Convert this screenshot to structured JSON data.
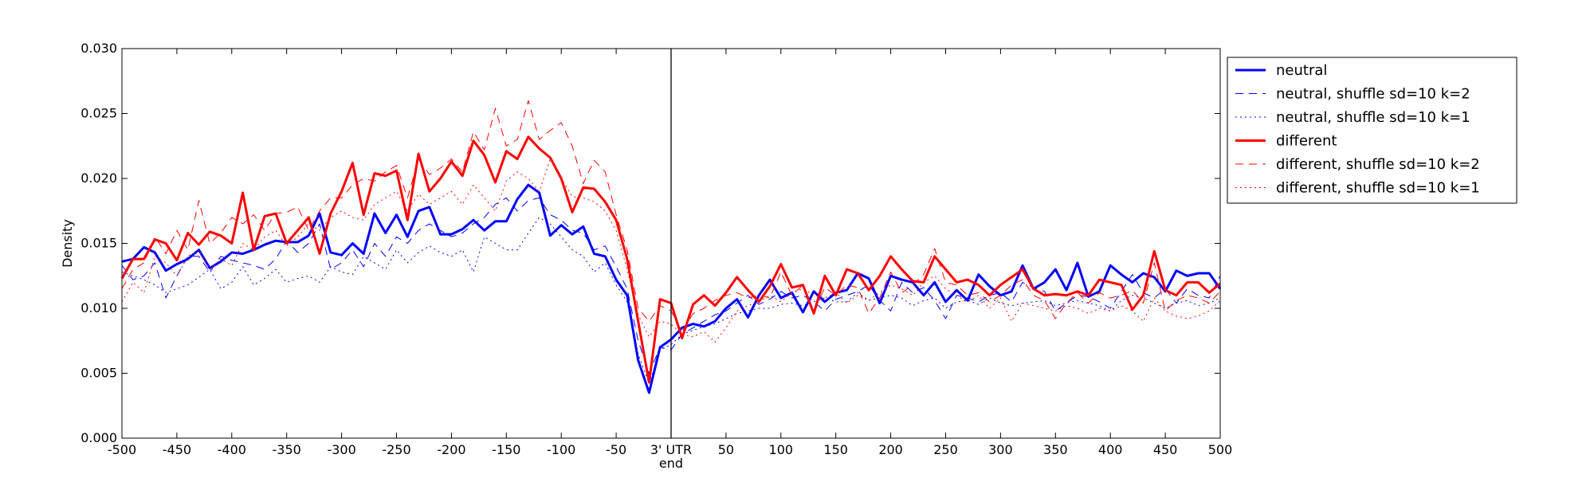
{
  "chart_data": {
    "type": "line",
    "title": "",
    "xlabel": "",
    "ylabel": "Density",
    "xlim": [
      -500,
      500
    ],
    "ylim": [
      0,
      0.03
    ],
    "x_ticks": [
      {
        "value": -500,
        "label": "-500"
      },
      {
        "value": -450,
        "label": "-450"
      },
      {
        "value": -400,
        "label": "-400"
      },
      {
        "value": -350,
        "label": "-350"
      },
      {
        "value": -300,
        "label": "-300"
      },
      {
        "value": -250,
        "label": "-250"
      },
      {
        "value": -200,
        "label": "-200"
      },
      {
        "value": -150,
        "label": "-150"
      },
      {
        "value": -100,
        "label": "-100"
      },
      {
        "value": -50,
        "label": "-50"
      },
      {
        "value": 0,
        "label": "3' UTR"
      },
      {
        "value": 50,
        "label": "50"
      },
      {
        "value": 100,
        "label": "100"
      },
      {
        "value": 150,
        "label": "150"
      },
      {
        "value": 200,
        "label": "200"
      },
      {
        "value": 250,
        "label": "250"
      },
      {
        "value": 300,
        "label": "300"
      },
      {
        "value": 350,
        "label": "350"
      },
      {
        "value": 400,
        "label": "400"
      },
      {
        "value": 450,
        "label": "450"
      },
      {
        "value": 500,
        "label": "500"
      }
    ],
    "x_tick_sublabel": "end",
    "y_ticks": [
      {
        "value": 0,
        "label": "0.000"
      },
      {
        "value": 0.005,
        "label": "0.005"
      },
      {
        "value": 0.01,
        "label": "0.010"
      },
      {
        "value": 0.015,
        "label": "0.015"
      },
      {
        "value": 0.02,
        "label": "0.020"
      },
      {
        "value": 0.025,
        "label": "0.025"
      },
      {
        "value": 0.03,
        "label": "0.030"
      }
    ],
    "vline_x": 0,
    "grid": false,
    "legend_position": "outside-right-top",
    "x": [
      -500,
      -490,
      -480,
      -470,
      -460,
      -450,
      -440,
      -430,
      -420,
      -410,
      -400,
      -390,
      -380,
      -370,
      -360,
      -350,
      -340,
      -330,
      -320,
      -310,
      -300,
      -290,
      -280,
      -270,
      -260,
      -250,
      -240,
      -230,
      -220,
      -210,
      -200,
      -190,
      -180,
      -170,
      -160,
      -150,
      -140,
      -130,
      -120,
      -110,
      -100,
      -90,
      -80,
      -70,
      -60,
      -50,
      -40,
      -30,
      -20,
      -10,
      0,
      10,
      20,
      30,
      40,
      50,
      60,
      70,
      80,
      90,
      100,
      110,
      120,
      130,
      140,
      150,
      160,
      170,
      180,
      190,
      200,
      210,
      220,
      230,
      240,
      250,
      260,
      270,
      280,
      290,
      300,
      310,
      320,
      330,
      340,
      350,
      360,
      370,
      380,
      390,
      400,
      410,
      420,
      430,
      440,
      450,
      460,
      470,
      480,
      490,
      500
    ],
    "series": [
      {
        "name": "neutral",
        "color": "#0000ff",
        "style": "solid",
        "width": 3,
        "values": [
          0.0136,
          0.0138,
          0.0147,
          0.0143,
          0.0129,
          0.0134,
          0.0138,
          0.0145,
          0.0131,
          0.0136,
          0.0143,
          0.0142,
          0.0145,
          0.0149,
          0.0152,
          0.0151,
          0.0151,
          0.0156,
          0.0173,
          0.0143,
          0.0141,
          0.015,
          0.0142,
          0.0173,
          0.0158,
          0.0172,
          0.0155,
          0.0175,
          0.0178,
          0.0157,
          0.0157,
          0.0161,
          0.0168,
          0.016,
          0.0167,
          0.0167,
          0.0184,
          0.0195,
          0.0189,
          0.0156,
          0.0164,
          0.0157,
          0.0163,
          0.0142,
          0.014,
          0.0122,
          0.011,
          0.006,
          0.0035,
          0.007,
          0.0076,
          0.0085,
          0.0088,
          0.0086,
          0.009,
          0.01,
          0.0107,
          0.0093,
          0.011,
          0.0122,
          0.0108,
          0.0112,
          0.0097,
          0.0113,
          0.0105,
          0.0112,
          0.0114,
          0.0127,
          0.0123,
          0.0104,
          0.0125,
          0.0122,
          0.012,
          0.011,
          0.012,
          0.0105,
          0.0114,
          0.0106,
          0.0126,
          0.0117,
          0.011,
          0.0113,
          0.0133,
          0.0115,
          0.012,
          0.013,
          0.0114,
          0.0135,
          0.0109,
          0.0113,
          0.0133,
          0.0126,
          0.012,
          0.0127,
          0.0124,
          0.0113,
          0.0129,
          0.0125,
          0.0127,
          0.0127,
          0.0115
        ]
      },
      {
        "name": "neutral, shuffle sd=10 k=2",
        "color": "#0000ff",
        "style": "dashed",
        "width": 1,
        "values": [
          0.0133,
          0.0122,
          0.0125,
          0.0135,
          0.0108,
          0.0125,
          0.014,
          0.014,
          0.0128,
          0.014,
          0.0137,
          0.0135,
          0.0133,
          0.013,
          0.0138,
          0.0152,
          0.0143,
          0.015,
          0.0165,
          0.013,
          0.0135,
          0.0145,
          0.0132,
          0.015,
          0.014,
          0.0155,
          0.015,
          0.016,
          0.0165,
          0.016,
          0.0155,
          0.0158,
          0.0165,
          0.017,
          0.018,
          0.0185,
          0.0175,
          0.0183,
          0.0185,
          0.0172,
          0.0168,
          0.016,
          0.0158,
          0.0145,
          0.0148,
          0.0132,
          0.0115,
          0.0075,
          0.005,
          0.007,
          0.0068,
          0.008,
          0.0085,
          0.009,
          0.0095,
          0.0098,
          0.0104,
          0.011,
          0.0103,
          0.0107,
          0.0113,
          0.0108,
          0.011,
          0.0105,
          0.0098,
          0.0107,
          0.011,
          0.0113,
          0.0118,
          0.0106,
          0.0098,
          0.012,
          0.0112,
          0.0116,
          0.0106,
          0.0092,
          0.011,
          0.0108,
          0.0105,
          0.011,
          0.0112,
          0.0105,
          0.012,
          0.0116,
          0.0113,
          0.0098,
          0.0104,
          0.011,
          0.0109,
          0.0105,
          0.01,
          0.0113,
          0.0126,
          0.0112,
          0.0108,
          0.0115,
          0.0104,
          0.0115,
          0.011,
          0.0108,
          0.0125
        ]
      },
      {
        "name": "neutral, shuffle sd=10 k=1",
        "color": "#0000ff",
        "style": "dotted",
        "width": 1,
        "values": [
          0.0128,
          0.0125,
          0.0122,
          0.0118,
          0.0112,
          0.0115,
          0.0118,
          0.0124,
          0.013,
          0.0115,
          0.012,
          0.0132,
          0.0118,
          0.0123,
          0.013,
          0.012,
          0.0123,
          0.0125,
          0.012,
          0.0132,
          0.0128,
          0.0126,
          0.014,
          0.0135,
          0.013,
          0.0145,
          0.0135,
          0.0143,
          0.0148,
          0.0143,
          0.014,
          0.0145,
          0.0128,
          0.0155,
          0.015,
          0.0145,
          0.0145,
          0.0158,
          0.017,
          0.0165,
          0.0155,
          0.0145,
          0.014,
          0.0128,
          0.0135,
          0.0118,
          0.0105,
          0.0065,
          0.0042,
          0.0068,
          0.0072,
          0.008,
          0.0083,
          0.0086,
          0.0088,
          0.0092,
          0.0096,
          0.0098,
          0.01,
          0.01,
          0.0103,
          0.0104,
          0.0102,
          0.0105,
          0.0108,
          0.0105,
          0.0105,
          0.0112,
          0.0106,
          0.0108,
          0.011,
          0.0108,
          0.0102,
          0.0106,
          0.0108,
          0.01,
          0.0105,
          0.0106,
          0.0103,
          0.0108,
          0.0104,
          0.0102,
          0.0104,
          0.0105,
          0.0106,
          0.0102,
          0.0104,
          0.0106,
          0.0104,
          0.0102,
          0.0098,
          0.0106,
          0.011,
          0.0108,
          0.0104,
          0.01,
          0.0104,
          0.0106,
          0.0102,
          0.0104,
          0.0108
        ]
      },
      {
        "name": "different",
        "color": "#ff0000",
        "style": "solid",
        "width": 3,
        "values": [
          0.0123,
          0.0138,
          0.0138,
          0.0153,
          0.015,
          0.0137,
          0.0158,
          0.0149,
          0.0159,
          0.0156,
          0.015,
          0.0189,
          0.0145,
          0.0171,
          0.0173,
          0.015,
          0.016,
          0.017,
          0.0142,
          0.0173,
          0.019,
          0.0212,
          0.0172,
          0.0204,
          0.0202,
          0.0206,
          0.0168,
          0.0219,
          0.019,
          0.02,
          0.0213,
          0.0202,
          0.0229,
          0.0218,
          0.0197,
          0.0221,
          0.0215,
          0.0232,
          0.0223,
          0.0216,
          0.02,
          0.0174,
          0.0193,
          0.0192,
          0.0182,
          0.0168,
          0.0138,
          0.009,
          0.0043,
          0.0107,
          0.0104,
          0.0077,
          0.0103,
          0.011,
          0.0102,
          0.0112,
          0.0124,
          0.0114,
          0.0105,
          0.0117,
          0.0134,
          0.0116,
          0.0118,
          0.0096,
          0.0125,
          0.011,
          0.013,
          0.0127,
          0.0114,
          0.0125,
          0.014,
          0.013,
          0.0121,
          0.012,
          0.014,
          0.013,
          0.012,
          0.0122,
          0.0118,
          0.011,
          0.0118,
          0.0124,
          0.013,
          0.0115,
          0.011,
          0.0111,
          0.011,
          0.0113,
          0.011,
          0.0122,
          0.012,
          0.0118,
          0.0099,
          0.011,
          0.0144,
          0.0114,
          0.011,
          0.012,
          0.012,
          0.0112,
          0.0119
        ]
      },
      {
        "name": "different, shuffle sd=10 k=2",
        "color": "#ff0000",
        "style": "dashed",
        "width": 1,
        "values": [
          0.0115,
          0.013,
          0.0135,
          0.0155,
          0.0142,
          0.016,
          0.0145,
          0.0183,
          0.015,
          0.0158,
          0.017,
          0.0165,
          0.0172,
          0.016,
          0.0173,
          0.0174,
          0.0178,
          0.016,
          0.0175,
          0.0185,
          0.0185,
          0.0195,
          0.02,
          0.0198,
          0.0205,
          0.021,
          0.0185,
          0.0215,
          0.0203,
          0.0208,
          0.0215,
          0.0205,
          0.0236,
          0.0222,
          0.0254,
          0.0225,
          0.023,
          0.026,
          0.023,
          0.0237,
          0.0243,
          0.0225,
          0.0196,
          0.0214,
          0.0205,
          0.0172,
          0.0145,
          0.01,
          0.009,
          0.0102,
          0.0098,
          0.0082,
          0.0096,
          0.01,
          0.0106,
          0.011,
          0.0112,
          0.0108,
          0.011,
          0.0108,
          0.0128,
          0.011,
          0.0118,
          0.0098,
          0.0116,
          0.011,
          0.0118,
          0.0116,
          0.0096,
          0.0108,
          0.0128,
          0.0112,
          0.0118,
          0.0126,
          0.0146,
          0.012,
          0.0118,
          0.011,
          0.0112,
          0.0105,
          0.011,
          0.0118,
          0.0122,
          0.011,
          0.0106,
          0.0092,
          0.0104,
          0.0112,
          0.0104,
          0.0112,
          0.0108,
          0.011,
          0.0114,
          0.0104,
          0.0135,
          0.0098,
          0.0106,
          0.011,
          0.0108,
          0.0104,
          0.0113
        ]
      },
      {
        "name": "different, shuffle sd=10 k=1",
        "color": "#ff0000",
        "style": "dotted",
        "width": 1,
        "values": [
          0.0105,
          0.012,
          0.0112,
          0.014,
          0.0135,
          0.0125,
          0.014,
          0.0145,
          0.013,
          0.0138,
          0.0133,
          0.015,
          0.0145,
          0.0155,
          0.016,
          0.0148,
          0.0155,
          0.0165,
          0.016,
          0.017,
          0.0175,
          0.017,
          0.0168,
          0.018,
          0.0185,
          0.019,
          0.0175,
          0.0188,
          0.018,
          0.0185,
          0.019,
          0.018,
          0.0195,
          0.0185,
          0.0175,
          0.0198,
          0.0205,
          0.02,
          0.019,
          0.0215,
          0.02,
          0.0186,
          0.0185,
          0.0182,
          0.0175,
          0.016,
          0.013,
          0.0095,
          0.0078,
          0.009,
          0.0088,
          0.008,
          0.0078,
          0.0082,
          0.0074,
          0.0085,
          0.0098,
          0.0102,
          0.0105,
          0.011,
          0.0105,
          0.0112,
          0.0115,
          0.011,
          0.0108,
          0.0112,
          0.0104,
          0.011,
          0.0106,
          0.0112,
          0.0118,
          0.0115,
          0.011,
          0.012,
          0.0125,
          0.0115,
          0.011,
          0.0105,
          0.011,
          0.01,
          0.0108,
          0.009,
          0.0104,
          0.0102,
          0.01,
          0.0098,
          0.0102,
          0.01,
          0.0096,
          0.01,
          0.0098,
          0.0102,
          0.0098,
          0.009,
          0.0108,
          0.0098,
          0.0094,
          0.0092,
          0.0094,
          0.0098,
          0.0106
        ]
      }
    ]
  }
}
